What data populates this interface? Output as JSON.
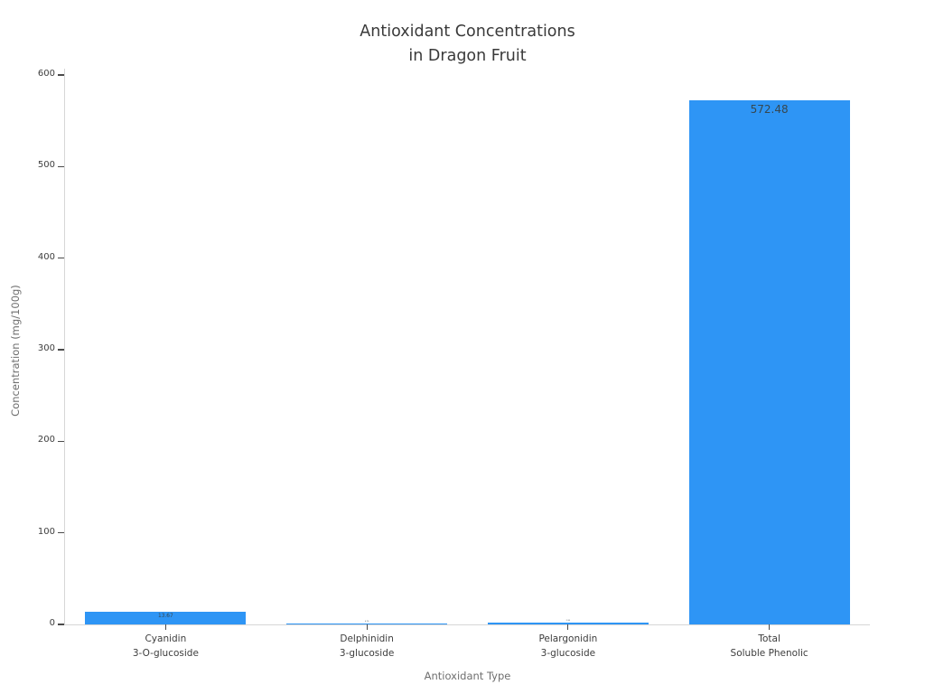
{
  "chart_data": {
    "type": "bar",
    "title": "Antioxidant Concentrations\nin Dragon Fruit",
    "xlabel": "Antioxidant Type",
    "ylabel": "Concentration (mg/100g)",
    "categories": [
      "Cyanidin\n3-O-glucoside",
      "Delphinidin\n3-glucoside",
      "Pelargonidin\n3-glucoside",
      "Total\nSoluble Phenolic"
    ],
    "values": [
      13.67,
      0.7,
      2.3,
      572.48
    ],
    "bar_labels": [
      "13.67",
      "0.70",
      "2.30",
      "572.48"
    ],
    "yticks": [
      0,
      100,
      200,
      300,
      400,
      500,
      600
    ],
    "ylim": [
      0,
      600
    ],
    "grid": false,
    "legend": "none",
    "bar_color": "#2E95F5",
    "value_label_color": "#37474f",
    "spine_color": "#d6d6d6",
    "tick_color": "#4a4a4a",
    "text_color": "#3d3d3d",
    "axis_title_color": "#6f6f6f",
    "title_color": "#3a3a3a"
  }
}
